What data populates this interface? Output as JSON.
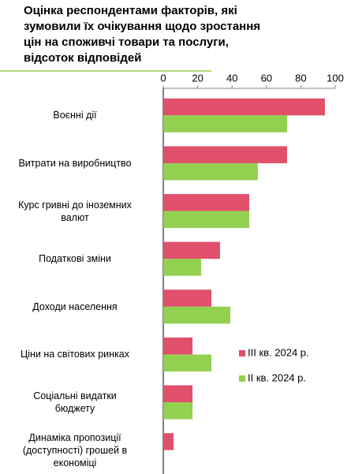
{
  "chart_data": {
    "type": "hbar",
    "title": "Оцінка респондентами факторів, які\nзумовили їх очікування щодо зростання\nцін на споживчі товари та послуги,\nвідсоток відповідей",
    "categories": [
      "Воєнні дії",
      "Витрати на виробництво",
      "Курс гривні до іноземних\nвалют",
      "Податкові зміни",
      "Доходи населення",
      "Ціни на світових ринках",
      "Соціальні видатки\nбюджету",
      "Динаміка пропозиції\n(доступності) грошей в\nекономіці"
    ],
    "series": [
      {
        "name": "III кв. 2024 р.",
        "color": "#e0506b",
        "values": [
          94,
          72,
          50,
          33,
          28,
          17,
          17,
          6
        ]
      },
      {
        "name": "II кв. 2024 р.",
        "color": "#92d050",
        "values": [
          72,
          55,
          50,
          22,
          39,
          28,
          17,
          0
        ]
      }
    ],
    "xlim": [
      0,
      100
    ],
    "xticks": [
      0,
      20,
      40,
      60,
      80,
      100
    ],
    "legend": "right"
  }
}
